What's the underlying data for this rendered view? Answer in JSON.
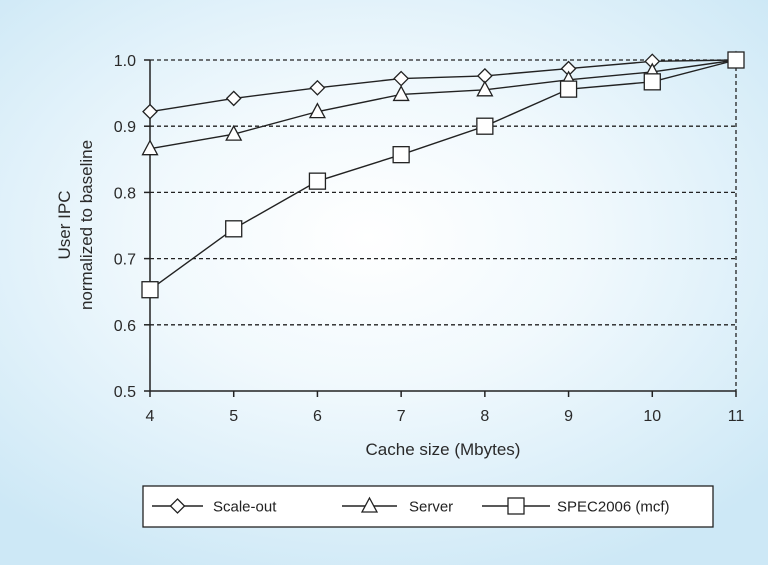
{
  "chart_data": {
    "type": "line",
    "xlabel": "Cache size (Mbytes)",
    "ylabel_lines": [
      "User IPC",
      "normalized to baseline"
    ],
    "x": [
      4,
      5,
      6,
      7,
      8,
      9,
      10,
      11
    ],
    "xlim": [
      4,
      11
    ],
    "ylim": [
      0.5,
      1.0
    ],
    "y_ticks": [
      "0.5",
      "0.6",
      "0.7",
      "0.8",
      "0.9",
      "1.0"
    ],
    "y_tick_values": [
      0.5,
      0.6,
      0.7,
      0.8,
      0.9,
      1.0
    ],
    "grid": "horizontal dashed",
    "legend_position": "bottom",
    "series": [
      {
        "name": "Scale-out",
        "marker": "diamond",
        "values": [
          0.922,
          0.942,
          0.958,
          0.972,
          0.976,
          0.987,
          0.998,
          1.0
        ]
      },
      {
        "name": "Server",
        "marker": "triangle",
        "values": [
          0.866,
          0.888,
          0.922,
          0.948,
          0.955,
          0.97,
          0.982,
          1.0
        ]
      },
      {
        "name": "SPEC2006 (mcf)",
        "marker": "square",
        "values": [
          0.653,
          0.745,
          0.817,
          0.857,
          0.9,
          0.956,
          0.967,
          1.0
        ]
      }
    ]
  }
}
